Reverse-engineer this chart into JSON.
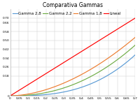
{
  "title": "Comparativa Gammas",
  "title_fontsize": 5.5,
  "x_min": 0,
  "x_max": 0.7,
  "y_min": 0,
  "y_max": 0.78,
  "gamma_28": 2.8,
  "gamma_22": 2.2,
  "gamma_18": 1.8,
  "color_28": "#5b9bd5",
  "color_22": "#70ad47",
  "color_18": "#ed7d31",
  "color_linear": "#ff0000",
  "label_28": "Gamma 2,8",
  "label_22": "Gamma 2,2",
  "label_18": "Gamma 1,8",
  "label_linear": "Lineal",
  "legend_fontsize": 4.0,
  "tick_fontsize": 3.2,
  "linewidth": 0.85,
  "x_ticks": [
    0,
    0.05,
    0.1,
    0.15,
    0.2,
    0.25,
    0.3,
    0.35,
    0.4,
    0.45,
    0.5,
    0.55,
    0.6,
    0.65,
    0.7
  ],
  "y_ticks": [
    0,
    0.18,
    0.26,
    0.34,
    0.42,
    0.5,
    0.58,
    0.66,
    0.7
  ],
  "bg_color": "#ffffff",
  "grid_color": "#d0d0d0",
  "grid_lw": 0.35
}
